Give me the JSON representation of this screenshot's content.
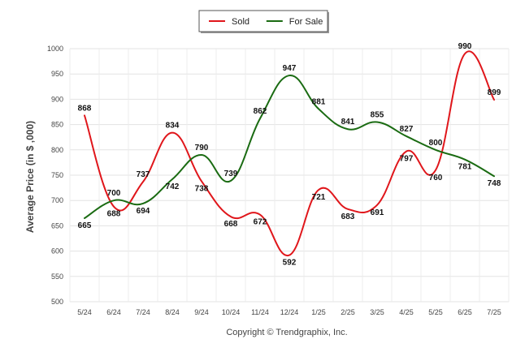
{
  "chart_data": {
    "type": "line",
    "categories": [
      "5/24",
      "6/24",
      "7/24",
      "8/24",
      "9/24",
      "10/24",
      "11/24",
      "12/24",
      "1/25",
      "2/25",
      "3/25",
      "4/25",
      "5/25",
      "6/25",
      "7/25"
    ],
    "series": [
      {
        "name": "Sold",
        "color": "#e0161b",
        "values": [
          868,
          688,
          737,
          834,
          738,
          668,
          672,
          592,
          721,
          683,
          691,
          797,
          760,
          990,
          899
        ]
      },
      {
        "name": "For Sale",
        "color": "#1a6b12",
        "values": [
          665,
          700,
          694,
          742,
          790,
          739,
          862,
          947,
          881,
          841,
          855,
          827,
          800,
          781,
          748
        ]
      }
    ],
    "title": "",
    "xlabel": "",
    "ylabel": "Average Price (in $ ,000)",
    "ylim": [
      500,
      1000
    ],
    "yticks": [
      500,
      550,
      600,
      650,
      700,
      750,
      800,
      850,
      900,
      950,
      1000
    ],
    "grid": true,
    "legend_position": "top-center",
    "data_labels": true
  },
  "footer": {
    "copyright": "Copyright © Trendgraphix, Inc."
  }
}
